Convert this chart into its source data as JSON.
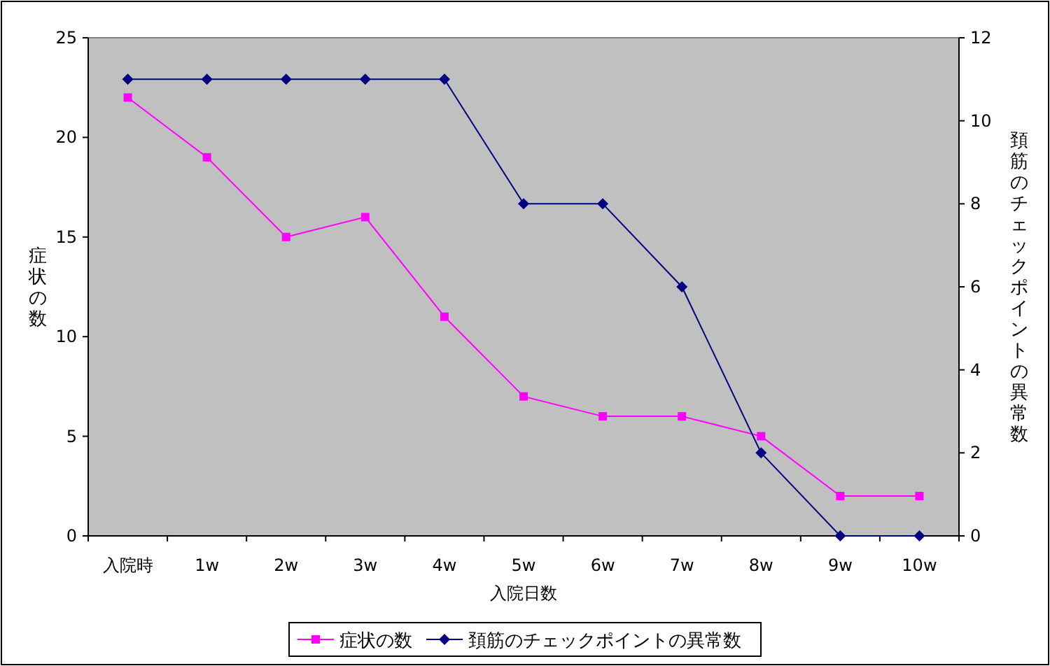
{
  "chart_data": {
    "type": "line",
    "categories": [
      "入院時",
      "1w",
      "2w",
      "3w",
      "4w",
      "5w",
      "6w",
      "7w",
      "8w",
      "9w",
      "10w"
    ],
    "series": [
      {
        "name": "症状の数",
        "color": "#ff00ff",
        "marker": "square",
        "values": [
          22,
          19,
          15,
          16,
          11,
          7,
          6,
          6,
          5,
          2,
          2
        ]
      },
      {
        "name": "頚筋のチェックポイントの異常数",
        "color": "#000080",
        "marker": "diamond",
        "axis": "y2",
        "values": [
          11,
          11,
          11,
          11,
          11,
          8,
          8,
          6,
          2,
          0,
          0
        ]
      }
    ],
    "xlabel": "入院日数",
    "ylabel": "症状の数",
    "y2label": "頚筋のチェックポイントの異常数",
    "ylim": [
      0,
      25
    ],
    "yticks": [
      0,
      5,
      10,
      15,
      20,
      25
    ],
    "y2lim": [
      0,
      12
    ],
    "y2ticks": [
      0,
      2,
      4,
      6,
      8,
      10,
      12
    ],
    "grid": false,
    "legend": "bottom"
  }
}
